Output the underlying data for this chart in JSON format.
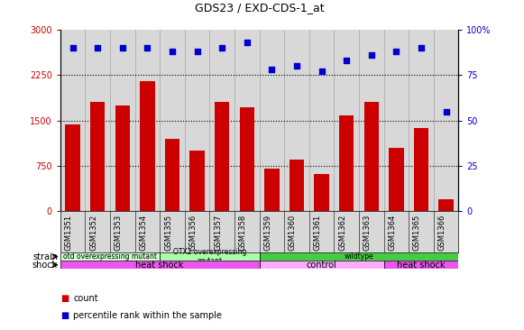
{
  "title": "GDS23 / EXD-CDS-1_at",
  "samples": [
    "GSM1351",
    "GSM1352",
    "GSM1353",
    "GSM1354",
    "GSM1355",
    "GSM1356",
    "GSM1357",
    "GSM1358",
    "GSM1359",
    "GSM1360",
    "GSM1361",
    "GSM1362",
    "GSM1363",
    "GSM1364",
    "GSM1365",
    "GSM1366"
  ],
  "counts": [
    1430,
    1800,
    1750,
    2150,
    1200,
    1000,
    1800,
    1720,
    700,
    850,
    620,
    1580,
    1800,
    1050,
    1380,
    200
  ],
  "percentiles": [
    90,
    90,
    90,
    90,
    88,
    88,
    90,
    93,
    78,
    80,
    77,
    83,
    86,
    88,
    90,
    55
  ],
  "bar_color": "#cc0000",
  "dot_color": "#0000cc",
  "ylim_left": [
    0,
    3000
  ],
  "ylim_right": [
    0,
    100
  ],
  "yticks_left": [
    0,
    750,
    1500,
    2250,
    3000
  ],
  "yticks_right": [
    0,
    25,
    50,
    75,
    100
  ],
  "strain_groups": [
    {
      "label": "otd overexpressing mutant",
      "start": 0,
      "end": 4,
      "color": "#ccffcc"
    },
    {
      "label": "OTX2 overexpressing\nmutant",
      "start": 4,
      "end": 8,
      "color": "#aaffaa"
    },
    {
      "label": "wildtype",
      "start": 8,
      "end": 16,
      "color": "#44cc44"
    }
  ],
  "shock_groups": [
    {
      "label": "heat shock",
      "start": 0,
      "end": 8,
      "color": "#ee55ee"
    },
    {
      "label": "control",
      "start": 8,
      "end": 13,
      "color": "#ffaaff"
    },
    {
      "label": "heat shock",
      "start": 13,
      "end": 16,
      "color": "#ee55ee"
    }
  ],
  "plot_bg_color": "#d8d8d8",
  "xtick_bg_color": "#d8d8d8"
}
